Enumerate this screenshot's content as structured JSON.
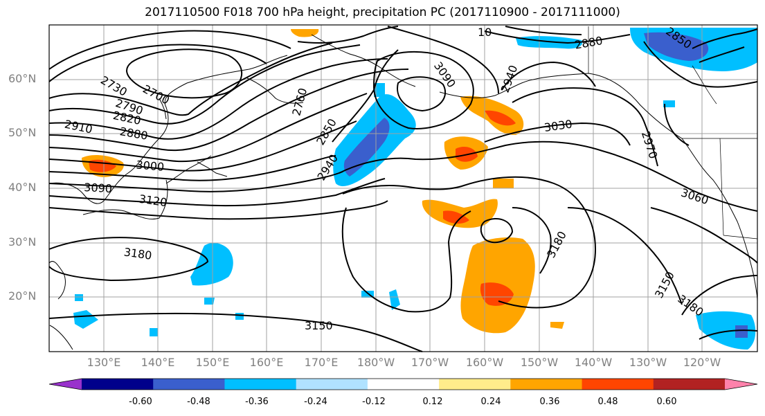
{
  "title": "2017110500 F018 700 hPa height, precipitation PC (2017110900 - 2017111000)",
  "lat_labels": [
    "60°N",
    "50°N",
    "40°N",
    "30°N",
    "20°N"
  ],
  "lon_labels": [
    "130°E",
    "140°E",
    "150°E",
    "160°E",
    "170°E",
    "180°W",
    "170°W",
    "160°W",
    "150°W",
    "140°W",
    "130°W",
    "120°W"
  ],
  "contour_labels": [
    "2730",
    "2700",
    "2790",
    "2820",
    "2910",
    "2880",
    "3000",
    "3090",
    "3120",
    "3180",
    "2760",
    "2850",
    "2940",
    "3090",
    "2940",
    "3030",
    "2970",
    "2880",
    "2850",
    "3060",
    "3180",
    "3150",
    "3180",
    "3150",
    "10"
  ],
  "colorbar": {
    "labels": [
      "-0.60",
      "-0.48",
      "-0.36",
      "-0.24",
      "-0.12",
      "0.12",
      "0.24",
      "0.36",
      "0.48",
      "0.60"
    ],
    "colors": [
      "#9932cc",
      "#00008b",
      "#3a5fcd",
      "#00bfff",
      "#b0e2ff",
      "#ffffff",
      "#ffec8b",
      "#ffa500",
      "#ff4500",
      "#b22222",
      "#ff82ab"
    ]
  }
}
